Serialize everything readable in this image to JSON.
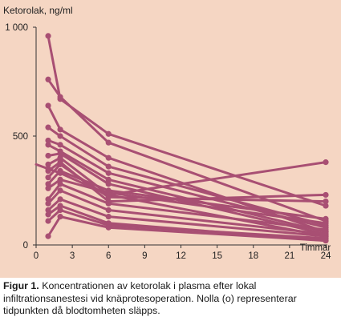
{
  "chart_data": {
    "type": "line",
    "ylabel": "Ketorolak, ng/ml",
    "xlabel": "Timmar",
    "xlim": [
      0,
      24
    ],
    "ylim": [
      0,
      1000
    ],
    "x_ticks": [
      0,
      3,
      6,
      9,
      12,
      15,
      18,
      21,
      24
    ],
    "y_ticks": [
      {
        "value": 0,
        "label": "0"
      },
      {
        "value": 500,
        "label": "500"
      },
      {
        "value": 1000,
        "label": "1 000"
      }
    ],
    "grid": false,
    "series_color": "#a84f73",
    "background": "#f5d6c3",
    "series": [
      {
        "x": [
          1,
          2,
          6,
          24
        ],
        "y": [
          960,
          670,
          510,
          180
        ]
      },
      {
        "x": [
          1,
          2,
          6,
          24
        ],
        "y": [
          760,
          680,
          470,
          110
        ]
      },
      {
        "x": [
          1,
          2,
          6,
          24
        ],
        "y": [
          640,
          530,
          400,
          60
        ]
      },
      {
        "x": [
          1,
          2,
          6,
          24
        ],
        "y": [
          540,
          500,
          360,
          90
        ]
      },
      {
        "x": [
          1,
          2,
          6,
          24
        ],
        "y": [
          480,
          460,
          330,
          80
        ]
      },
      {
        "x": [
          1,
          2,
          6,
          24
        ],
        "y": [
          460,
          430,
          300,
          60
        ]
      },
      {
        "x": [
          1,
          2,
          6,
          24
        ],
        "y": [
          410,
          420,
          280,
          50
        ]
      },
      {
        "x": [
          1,
          2,
          6,
          24
        ],
        "y": [
          370,
          400,
          230,
          40
        ]
      },
      {
        "x": [
          1,
          2,
          6,
          24
        ],
        "y": [
          340,
          380,
          200,
          230
        ]
      },
      {
        "x": [
          1,
          2,
          6,
          24
        ],
        "y": [
          310,
          370,
          220,
          200
        ]
      },
      {
        "x": [
          1,
          2,
          6,
          24
        ],
        "y": [
          280,
          340,
          250,
          120
        ]
      },
      {
        "x": [
          1,
          2,
          6,
          24
        ],
        "y": [
          260,
          300,
          240,
          100
        ]
      },
      {
        "x": [
          1,
          2,
          6,
          24
        ],
        "y": [
          210,
          280,
          190,
          70
        ]
      },
      {
        "x": [
          1,
          2,
          6,
          24
        ],
        "y": [
          190,
          250,
          160,
          50
        ]
      },
      {
        "x": [
          1,
          2,
          6,
          24
        ],
        "y": [
          160,
          210,
          130,
          40
        ]
      },
      {
        "x": [
          1,
          2,
          6,
          24
        ],
        "y": [
          140,
          180,
          100,
          20
        ]
      },
      {
        "x": [
          1,
          2,
          6,
          24
        ],
        "y": [
          110,
          160,
          90,
          30
        ]
      },
      {
        "x": [
          1,
          2,
          6,
          24
        ],
        "y": [
          40,
          130,
          80,
          20
        ]
      },
      {
        "x": [
          0,
          1,
          2,
          6,
          24
        ],
        "y": [
          370,
          350,
          330,
          230,
          380
        ]
      }
    ]
  },
  "caption": {
    "label": "Figur 1.",
    "text": " Koncentrationen av ketorolak i plasma efter lokal infiltrationsanestesi vid knäprotesoperation. Nolla (o) representerar tidpunkten då blodtomheten släpps."
  }
}
